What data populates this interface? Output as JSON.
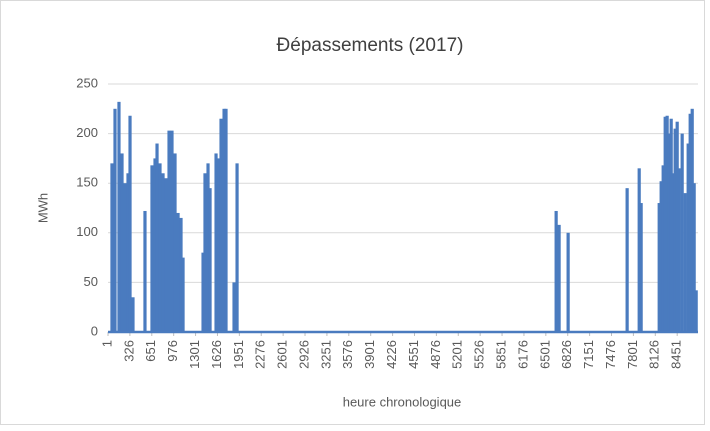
{
  "chart_data": {
    "type": "bar",
    "title": "Đépassements (2017)",
    "x_label": "heure chronologique",
    "y_label": "MWh",
    "x": [
      60,
      105,
      164,
      209,
      253,
      298,
      328,
      372,
      550,
      654,
      699,
      729,
      773,
      818,
      862,
      907,
      951,
      996,
      1041,
      1085,
      1115,
      1412,
      1441,
      1486,
      1516,
      1605,
      1649,
      1679,
      1724,
      1753,
      1872,
      1917,
      6654,
      6698,
      6832,
      7708,
      7887,
      7916,
      8184,
      8213,
      8243,
      8273,
      8302,
      8332,
      8362,
      8392,
      8421,
      8451,
      8481,
      8525,
      8570,
      8614,
      8644,
      8674,
      8703,
      8733
    ],
    "values": [
      170,
      225,
      232,
      180,
      150,
      160,
      218,
      35,
      122,
      168,
      175,
      190,
      170,
      160,
      155,
      203,
      203,
      180,
      120,
      115,
      75,
      80,
      160,
      170,
      145,
      180,
      175,
      215,
      225,
      225,
      50,
      170,
      122,
      108,
      100,
      145,
      165,
      130,
      130,
      152,
      168,
      217,
      218,
      200,
      215,
      160,
      205,
      212,
      165,
      200,
      140,
      190,
      220,
      225,
      150,
      42
    ],
    "color": "#4a7bbf",
    "xlim": [
      1,
      8760
    ],
    "xticks": [
      1,
      326,
      651,
      976,
      1301,
      1626,
      1951,
      2276,
      2601,
      2926,
      3251,
      3576,
      3901,
      4226,
      4551,
      4876,
      5201,
      5526,
      5851,
      6176,
      6501,
      6826,
      7151,
      7476,
      7801,
      8126,
      8451
    ],
    "ylim": [
      0,
      250
    ],
    "yticks": [
      0,
      50,
      100,
      150,
      200,
      250
    ],
    "grid": true
  }
}
